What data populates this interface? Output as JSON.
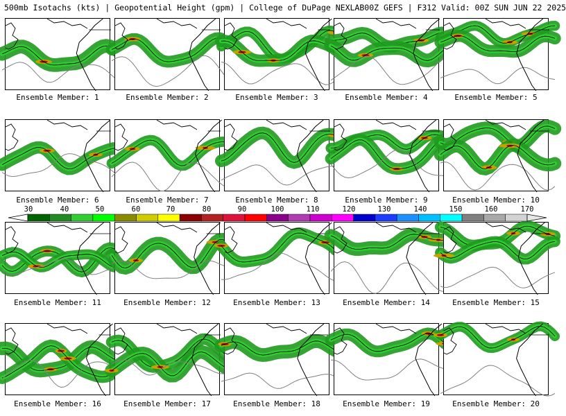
{
  "header": {
    "left": "500mb Isotachs (kts) | Geopotential Height (gpm) | College of DuPage NEXLAB",
    "right": "00Z GEFS | F312 Valid: 00Z SUN JUN 22 2025"
  },
  "colorbar": {
    "labels": [
      "30",
      "40",
      "50",
      "60",
      "70",
      "80",
      "90",
      "100",
      "110",
      "120",
      "130",
      "140",
      "150",
      "160",
      "170"
    ],
    "colors": [
      "#006400",
      "#228b22",
      "#32cd32",
      "#00ff00",
      "#8b8b00",
      "#cdcd00",
      "#ffff00",
      "#8b0000",
      "#b22222",
      "#dc143c",
      "#ff0000",
      "#8b008b",
      "#b03cb0",
      "#cd00cd",
      "#ff00ff",
      "#0000cd",
      "#1e3cff",
      "#1e90ff",
      "#00bfff",
      "#00ffff",
      "#808080",
      "#a9a9a9",
      "#d3d3d3"
    ]
  },
  "members": [
    {
      "label": "Ensemble Member: 1"
    },
    {
      "label": "Ensemble Member: 2"
    },
    {
      "label": "Ensemble Member: 3"
    },
    {
      "label": "Ensemble Member: 4"
    },
    {
      "label": "Ensemble Member: 5"
    },
    {
      "label": "Ensemble Member: 6"
    },
    {
      "label": "Ensemble Member: 7"
    },
    {
      "label": "Ensemble Member: 8"
    },
    {
      "label": "Ensemble Member: 9"
    },
    {
      "label": "Ensemble Member: 10"
    },
    {
      "label": "Ensemble Member: 11"
    },
    {
      "label": "Ensemble Member: 12"
    },
    {
      "label": "Ensemble Member: 13"
    },
    {
      "label": "Ensemble Member: 14"
    },
    {
      "label": "Ensemble Member: 15"
    },
    {
      "label": "Ensemble Member: 16"
    },
    {
      "label": "Ensemble Member: 17"
    },
    {
      "label": "Ensemble Member: 18"
    },
    {
      "label": "Ensemble Member: 19"
    },
    {
      "label": "Ensemble Member: 20"
    }
  ]
}
